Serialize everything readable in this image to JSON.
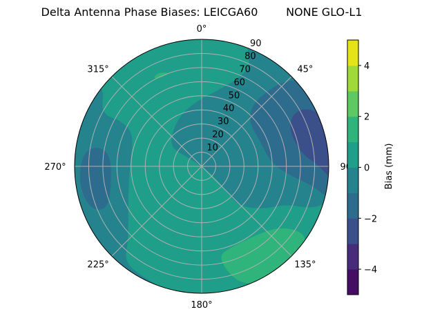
{
  "chart_data": {
    "type": "polar-contour",
    "title": "Delta Antenna Phase Biases: LEICGA60        NONE GLO-L1",
    "theta_direction": "clockwise",
    "theta_zero": "north",
    "theta_ticks": [
      "0°",
      "45°",
      "90°",
      "135°",
      "180°",
      "225°",
      "270°",
      "315°"
    ],
    "theta_tick_values": [
      0,
      45,
      90,
      135,
      180,
      225,
      270,
      315
    ],
    "r_ticks": [
      "10",
      "20",
      "30",
      "40",
      "50",
      "60",
      "70",
      "80",
      "90"
    ],
    "r_tick_values": [
      10,
      20,
      30,
      40,
      50,
      60,
      70,
      80,
      90
    ],
    "r_range": [
      0,
      90
    ],
    "grid": true,
    "colorbar": {
      "label": "Bias (mm)",
      "range": [
        -5,
        5
      ],
      "levels": [
        -5,
        -4,
        -3,
        -2,
        -1,
        0,
        1,
        2,
        3,
        4,
        5
      ],
      "colors": [
        "#440f62",
        "#472c7a",
        "#3b4f8a",
        "#2e6c8e",
        "#25838e",
        "#1f9e89",
        "#2fb47c",
        "#5ec962",
        "#a0da39",
        "#e4e419"
      ],
      "ticks": [
        "−4",
        "−2",
        "0",
        "2",
        "4"
      ],
      "tick_values": [
        -4,
        -2,
        0,
        2,
        4
      ]
    },
    "background_level": [
      0,
      1
    ],
    "regions": [
      {
        "level": [
          -1,
          0
        ],
        "points": [
          [
            19,
            90
          ],
          [
            25,
            82
          ],
          [
            24.7,
            71
          ],
          [
            11,
            54
          ],
          [
            356.6,
            47
          ],
          [
            336,
            39
          ],
          [
            313,
            30
          ],
          [
            301,
            24
          ],
          [
            303,
            11
          ],
          [
            0,
            0
          ],
          [
            130,
            13
          ],
          [
            135,
            24
          ],
          [
            137,
            39
          ],
          [
            124,
            54
          ],
          [
            114,
            66
          ],
          [
            111,
            84
          ],
          [
            105,
            90
          ],
          [
            90,
            90
          ],
          [
            75,
            90
          ],
          [
            60,
            90
          ],
          [
            45,
            90
          ],
          [
            30,
            90
          ]
        ]
      },
      {
        "level": [
          -1,
          0
        ],
        "points": [
          [
            308,
            88
          ],
          [
            297.5,
            80
          ],
          [
            299.6,
            65
          ],
          [
            295,
            53
          ],
          [
            269.5,
            51
          ],
          [
            246,
            57
          ],
          [
            224.5,
            74
          ],
          [
            219,
            87
          ],
          [
            208,
            89
          ],
          [
            188,
            90
          ],
          [
            200,
            90
          ],
          [
            220,
            90
          ],
          [
            240,
            90
          ],
          [
            260,
            90
          ],
          [
            280,
            90
          ],
          [
            300,
            90
          ],
          [
            308,
            90
          ]
        ]
      },
      {
        "level": [
          -2,
          -1
        ],
        "points": [
          [
            45,
            86
          ],
          [
            42,
            76
          ],
          [
            39,
            58
          ],
          [
            46,
            46
          ],
          [
            65,
            45
          ],
          [
            87,
            49
          ],
          [
            96,
            63
          ],
          [
            100,
            80
          ],
          [
            105,
            90
          ],
          [
            90,
            90
          ],
          [
            75,
            90
          ],
          [
            60,
            90
          ],
          [
            50,
            90
          ]
        ]
      },
      {
        "level": [
          -2,
          -1
        ],
        "points": [
          [
            276,
            85
          ],
          [
            281,
            76
          ],
          [
            278,
            66
          ],
          [
            264,
            64
          ],
          [
            245,
            73
          ],
          [
            249,
            85
          ],
          [
            262,
            88
          ]
        ]
      },
      {
        "level": [
          -3,
          -2
        ],
        "points": [
          [
            61,
            73
          ],
          [
            60,
            80
          ],
          [
            62,
            87
          ],
          [
            69,
            90
          ],
          [
            80,
            90
          ],
          [
            90,
            90
          ],
          [
            97,
            90
          ],
          [
            89,
            82
          ],
          [
            82.5,
            71
          ],
          [
            68,
            67
          ]
        ]
      },
      {
        "level": [
          1,
          2
        ],
        "points": [
          [
            169.5,
            65
          ],
          [
            160.8,
            61
          ],
          [
            136,
            64
          ],
          [
            126,
            73
          ],
          [
            123,
            88
          ],
          [
            130,
            90
          ],
          [
            136.5,
            90
          ],
          [
            150.5,
            90
          ],
          [
            160,
            89
          ],
          [
            165.4,
            80
          ]
        ]
      },
      {
        "level": [
          1,
          2
        ],
        "points": [
          [
            332,
            72
          ],
          [
            336,
            73
          ],
          [
            341,
            70
          ],
          [
            337,
            69
          ],
          [
            332,
            70
          ]
        ]
      }
    ]
  }
}
